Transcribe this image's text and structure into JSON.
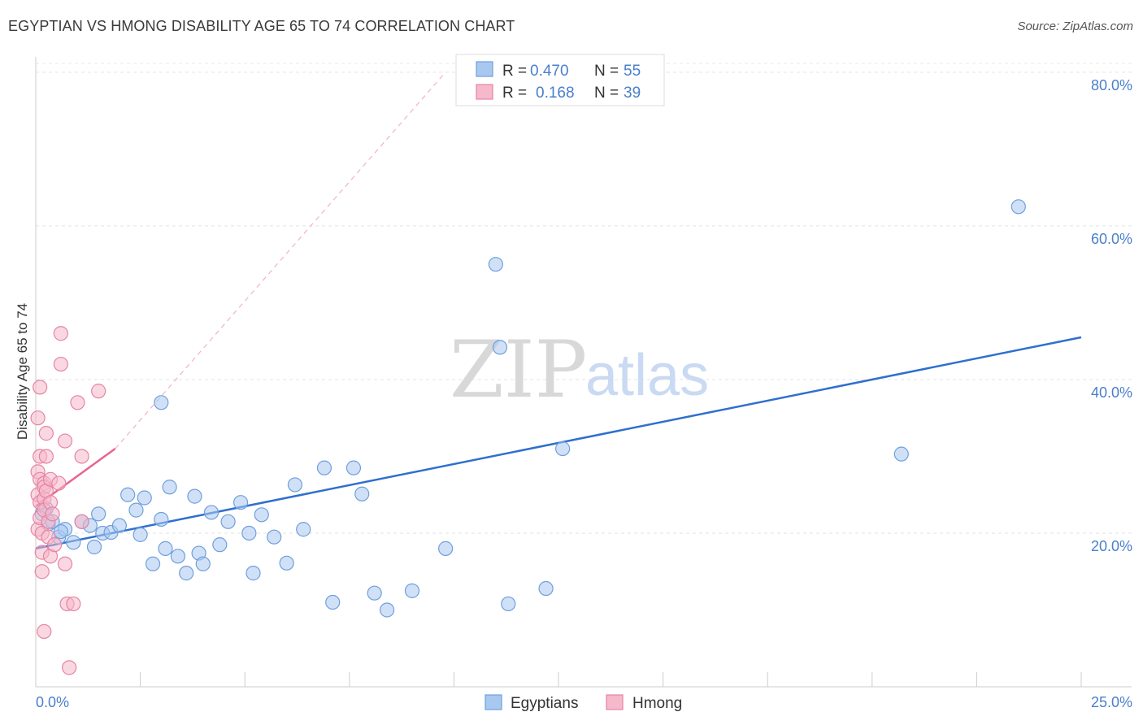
{
  "title": "EGYPTIAN VS HMONG DISABILITY AGE 65 TO 74 CORRELATION CHART",
  "source": "Source: ZipAtlas.com",
  "watermark": {
    "zip": "ZIP",
    "atlas": "atlas"
  },
  "colors": {
    "egyptians": "#a9c8f0",
    "egyptians_stroke": "#6f9fdc",
    "egyptians_line": "#2f6fcf",
    "hmong": "#f6b8cb",
    "hmong_stroke": "#e684a4",
    "hmong_line": "#e8658f",
    "tick": "#4a7fcc"
  },
  "legend": {
    "rows": [
      {
        "r_label": "R =",
        "r_value": "0.470",
        "n_label": "N =",
        "n_value": "55"
      },
      {
        "r_label": "R =",
        "r_value": "0.168",
        "n_label": "N =",
        "n_value": "39"
      }
    ]
  },
  "chart_data": {
    "type": "scatter",
    "title": "EGYPTIAN VS HMONG DISABILITY AGE 65 TO 74 CORRELATION CHART",
    "xlabel": "",
    "ylabel": "Disability Age 65 to 74",
    "xlim": [
      0,
      25
    ],
    "ylim": [
      0,
      82
    ],
    "x_tick_labels": [
      "0.0%",
      "25.0%"
    ],
    "y_ticks": [
      20,
      40,
      60,
      80
    ],
    "y_tick_labels": [
      "20.0%",
      "40.0%",
      "60.0%",
      "80.0%"
    ],
    "grid": true,
    "legend_position": "top-center",
    "series": [
      {
        "name": "Egyptians",
        "r": 0.47,
        "n": 55,
        "trend": {
          "x": [
            0,
            25
          ],
          "y": [
            18.0,
            45.5
          ]
        },
        "points": [
          [
            0.15,
            22.5
          ],
          [
            0.3,
            21.2
          ],
          [
            0.4,
            21.5
          ],
          [
            0.55,
            19.5
          ],
          [
            0.7,
            20.5
          ],
          [
            0.9,
            18.8
          ],
          [
            1.1,
            21.5
          ],
          [
            1.3,
            21.0
          ],
          [
            1.4,
            18.2
          ],
          [
            1.6,
            20.0
          ],
          [
            1.8,
            20.1
          ],
          [
            2.0,
            21.0
          ],
          [
            2.2,
            25.0
          ],
          [
            2.4,
            23.0
          ],
          [
            2.5,
            19.8
          ],
          [
            2.8,
            16.0
          ],
          [
            3.0,
            21.8
          ],
          [
            3.1,
            18.0
          ],
          [
            3.2,
            26.0
          ],
          [
            3.4,
            17.0
          ],
          [
            3.6,
            14.8
          ],
          [
            3.9,
            17.4
          ],
          [
            4.2,
            22.7
          ],
          [
            4.4,
            18.5
          ],
          [
            4.6,
            21.5
          ],
          [
            3.0,
            37.0
          ],
          [
            3.8,
            24.8
          ],
          [
            4.9,
            24.0
          ],
          [
            5.2,
            14.8
          ],
          [
            5.4,
            22.4
          ],
          [
            5.1,
            20.0
          ],
          [
            5.7,
            19.5
          ],
          [
            6.0,
            16.1
          ],
          [
            6.2,
            26.3
          ],
          [
            6.4,
            20.5
          ],
          [
            6.9,
            28.5
          ],
          [
            7.1,
            11.0
          ],
          [
            7.6,
            28.5
          ],
          [
            7.8,
            25.1
          ],
          [
            8.1,
            12.2
          ],
          [
            8.4,
            10.0
          ],
          [
            9.0,
            12.5
          ],
          [
            9.8,
            18.0
          ],
          [
            11.0,
            55.0
          ],
          [
            11.1,
            44.2
          ],
          [
            11.3,
            10.8
          ],
          [
            12.2,
            12.8
          ],
          [
            12.6,
            31.0
          ],
          [
            20.7,
            30.3
          ],
          [
            23.5,
            62.5
          ],
          [
            1.5,
            22.5
          ],
          [
            0.6,
            20.2
          ],
          [
            2.6,
            24.6
          ],
          [
            4.0,
            16.0
          ],
          [
            0.25,
            23.2
          ]
        ]
      },
      {
        "name": "Hmong",
        "r": 0.168,
        "n": 39,
        "trend": {
          "x": [
            0,
            1.9
          ],
          "y": [
            23.5,
            31.0
          ]
        },
        "trend_extension": {
          "x": [
            1.9,
            9.8
          ],
          "y": [
            31.0,
            80.0
          ]
        },
        "points": [
          [
            0.05,
            20.5
          ],
          [
            0.05,
            25.0
          ],
          [
            0.05,
            28.0
          ],
          [
            0.05,
            35.0
          ],
          [
            0.1,
            39.0
          ],
          [
            0.1,
            30.0
          ],
          [
            0.1,
            27.0
          ],
          [
            0.1,
            24.0
          ],
          [
            0.1,
            22.0
          ],
          [
            0.15,
            20.0
          ],
          [
            0.15,
            17.5
          ],
          [
            0.15,
            15.0
          ],
          [
            0.2,
            26.5
          ],
          [
            0.2,
            26.0
          ],
          [
            0.2,
            24.5
          ],
          [
            0.2,
            23.0
          ],
          [
            0.25,
            33.0
          ],
          [
            0.25,
            30.0
          ],
          [
            0.25,
            25.5
          ],
          [
            0.3,
            21.5
          ],
          [
            0.3,
            19.5
          ],
          [
            0.35,
            17.0
          ],
          [
            0.35,
            27.0
          ],
          [
            0.35,
            24.0
          ],
          [
            0.4,
            22.5
          ],
          [
            0.45,
            18.5
          ],
          [
            0.55,
            26.5
          ],
          [
            0.6,
            46.0
          ],
          [
            0.6,
            42.0
          ],
          [
            0.7,
            32.0
          ],
          [
            0.7,
            16.0
          ],
          [
            0.75,
            10.8
          ],
          [
            0.8,
            2.5
          ],
          [
            0.9,
            10.8
          ],
          [
            1.0,
            37.0
          ],
          [
            1.1,
            21.5
          ],
          [
            1.5,
            38.5
          ],
          [
            1.1,
            30.0
          ],
          [
            0.2,
            7.2
          ]
        ]
      }
    ],
    "bottom_legend": [
      "Egyptians",
      "Hmong"
    ]
  }
}
